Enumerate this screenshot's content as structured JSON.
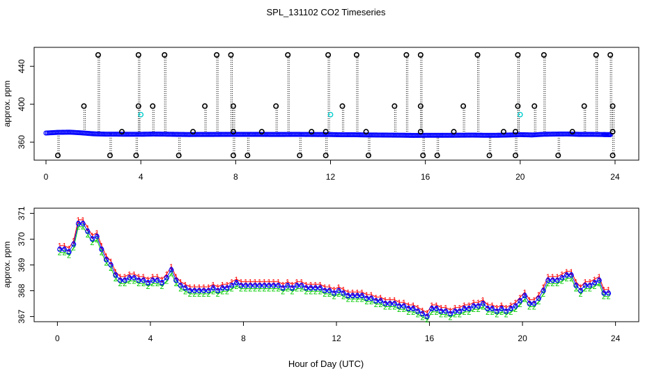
{
  "title": "SPL_131102  CO2 Timeseries",
  "xlabel": "Hour of Day (UTC)",
  "colors": {
    "frame": "#000000",
    "main": "#0000ff",
    "alt": "#00cccc",
    "red": "#ff0000",
    "green": "#00cc00",
    "flag": "#000000"
  },
  "chart_data": [
    {
      "type": "scatter",
      "panel": "top",
      "ylabel": "approx. ppm",
      "xlim": [
        -0.5,
        25
      ],
      "ylim": [
        341,
        460
      ],
      "xticks": [
        0,
        4,
        8,
        12,
        16,
        20,
        24
      ],
      "yticks": [
        360,
        400,
        440
      ],
      "baseline_series": {
        "name": "CO2",
        "x": [
          0,
          0.5,
          1,
          1.5,
          2,
          2.5,
          3,
          3.5,
          4,
          4.5,
          5,
          5.5,
          6,
          6.5,
          7,
          7.5,
          8,
          8.5,
          9,
          9.5,
          10,
          10.5,
          11,
          11.5,
          12,
          12.5,
          13,
          13.5,
          14,
          14.5,
          15,
          15.5,
          16,
          16.5,
          17,
          17.5,
          18,
          18.5,
          19,
          19.5,
          20,
          20.5,
          21,
          21.5,
          22,
          22.5,
          23,
          23.5,
          23.8
        ],
        "y": [
          369.6,
          370.3,
          370.5,
          369.8,
          368.8,
          368.4,
          368.4,
          368.3,
          368.3,
          368.5,
          368.4,
          368.2,
          368.0,
          368.1,
          368.1,
          368.2,
          368.2,
          368.2,
          368.2,
          368.1,
          368.1,
          368.2,
          368.1,
          368.0,
          368.0,
          367.8,
          367.8,
          367.6,
          367.5,
          367.4,
          367.3,
          367.1,
          367.2,
          367.2,
          367.2,
          367.3,
          367.4,
          367.2,
          367.2,
          367.5,
          367.9,
          367.6,
          368.3,
          368.5,
          368.6,
          368.2,
          368.2,
          368.0,
          367.9
        ]
      },
      "flagged_high": {
        "y": 452,
        "x": [
          2.2,
          3.9,
          5.0,
          7.2,
          7.8,
          10.2,
          11.9,
          13.1,
          15.2,
          15.8,
          18.2,
          19.9,
          21.0,
          23.2,
          23.8
        ]
      },
      "flagged_mid": {
        "y": 398,
        "x": [
          1.6,
          3.9,
          4.5,
          6.7,
          7.9,
          9.7,
          12.5,
          14.7,
          15.8,
          17.6,
          19.9,
          20.6,
          22.7,
          23.9
        ]
      },
      "flagged_low": {
        "y": 346,
        "x": [
          0.5,
          2.7,
          3.8,
          5.6,
          7.9,
          8.5,
          10.7,
          11.8,
          13.6,
          15.9,
          16.5,
          18.7,
          19.8,
          21.6,
          23.9
        ]
      },
      "flagged_base": {
        "y": 371,
        "x": [
          3.2,
          6.2,
          7.9,
          9.1,
          11.2,
          11.8,
          13.5,
          15.8,
          17.2,
          19.3,
          19.8,
          22.2,
          23.9
        ]
      },
      "alt_points": [
        {
          "x": 4.0,
          "y": 389
        },
        {
          "x": 12.0,
          "y": 389
        },
        {
          "x": 20.0,
          "y": 389
        }
      ]
    },
    {
      "type": "scatter",
      "panel": "bottom",
      "ylabel": "approx. ppm",
      "xlim": [
        -1,
        25
      ],
      "ylim": [
        366.8,
        371.2
      ],
      "xticks": [
        0,
        4,
        8,
        12,
        16,
        20,
        24
      ],
      "yticks": [
        367,
        368,
        369,
        370,
        371
      ],
      "series": [
        {
          "name": "1",
          "symbol": "1",
          "color": "#ff0000",
          "offset": 0.15
        },
        {
          "name": "2",
          "symbol": "2",
          "color": "#00cc00",
          "offset": -0.12
        },
        {
          "name": "3",
          "symbol": "3",
          "color": "#0000ff",
          "offset": 0.02
        }
      ],
      "x": [
        0.1,
        0.3,
        0.5,
        0.7,
        0.9,
        1.1,
        1.3,
        1.5,
        1.7,
        1.9,
        2.1,
        2.3,
        2.5,
        2.7,
        2.9,
        3.1,
        3.3,
        3.5,
        3.7,
        3.9,
        4.1,
        4.3,
        4.5,
        4.7,
        4.9,
        5.1,
        5.3,
        5.5,
        5.7,
        5.9,
        6.1,
        6.3,
        6.5,
        6.7,
        6.9,
        7.1,
        7.3,
        7.5,
        7.7,
        7.9,
        8.1,
        8.3,
        8.5,
        8.7,
        8.9,
        9.1,
        9.3,
        9.5,
        9.7,
        9.9,
        10.1,
        10.3,
        10.5,
        10.7,
        10.9,
        11.1,
        11.3,
        11.5,
        11.7,
        11.9,
        12.1,
        12.3,
        12.5,
        12.7,
        12.9,
        13.1,
        13.3,
        13.5,
        13.7,
        13.9,
        14.1,
        14.3,
        14.5,
        14.7,
        14.9,
        15.1,
        15.3,
        15.5,
        15.7,
        15.9,
        16.1,
        16.3,
        16.5,
        16.7,
        16.9,
        17.1,
        17.3,
        17.5,
        17.7,
        17.9,
        18.1,
        18.3,
        18.5,
        18.7,
        18.9,
        19.1,
        19.3,
        19.5,
        19.7,
        19.9,
        20.1,
        20.3,
        20.5,
        20.7,
        20.9,
        21.1,
        21.3,
        21.5,
        21.7,
        21.9,
        22.1,
        22.3,
        22.5,
        22.7,
        22.9,
        23.1,
        23.3,
        23.5,
        23.7
      ],
      "y": [
        369.6,
        369.6,
        369.5,
        369.8,
        370.6,
        370.6,
        370.3,
        370.0,
        370.1,
        369.6,
        369.2,
        369.0,
        368.6,
        368.4,
        368.4,
        368.5,
        368.5,
        368.4,
        368.4,
        368.3,
        368.4,
        368.4,
        368.3,
        368.5,
        368.8,
        368.4,
        368.2,
        368.1,
        368.0,
        368.0,
        368.0,
        368.0,
        368.0,
        368.1,
        368.0,
        368.1,
        368.1,
        368.2,
        368.3,
        368.2,
        368.2,
        368.2,
        368.2,
        368.2,
        368.2,
        368.2,
        368.2,
        368.2,
        368.1,
        368.2,
        368.1,
        368.2,
        368.2,
        368.1,
        368.1,
        368.1,
        368.1,
        368.0,
        368.0,
        367.9,
        368.0,
        367.9,
        367.8,
        367.8,
        367.8,
        367.8,
        367.7,
        367.7,
        367.6,
        367.6,
        367.5,
        367.5,
        367.5,
        367.4,
        367.4,
        367.3,
        367.3,
        367.2,
        367.1,
        367.0,
        367.3,
        367.3,
        367.2,
        367.2,
        367.1,
        367.2,
        367.2,
        367.3,
        367.3,
        367.4,
        367.4,
        367.5,
        367.3,
        367.3,
        367.2,
        367.3,
        367.2,
        367.3,
        367.4,
        367.6,
        367.8,
        367.5,
        367.5,
        367.7,
        368.0,
        368.4,
        368.4,
        368.4,
        368.5,
        368.6,
        368.6,
        368.2,
        368.0,
        368.2,
        368.2,
        368.3,
        368.4,
        367.9,
        367.9
      ]
    }
  ]
}
